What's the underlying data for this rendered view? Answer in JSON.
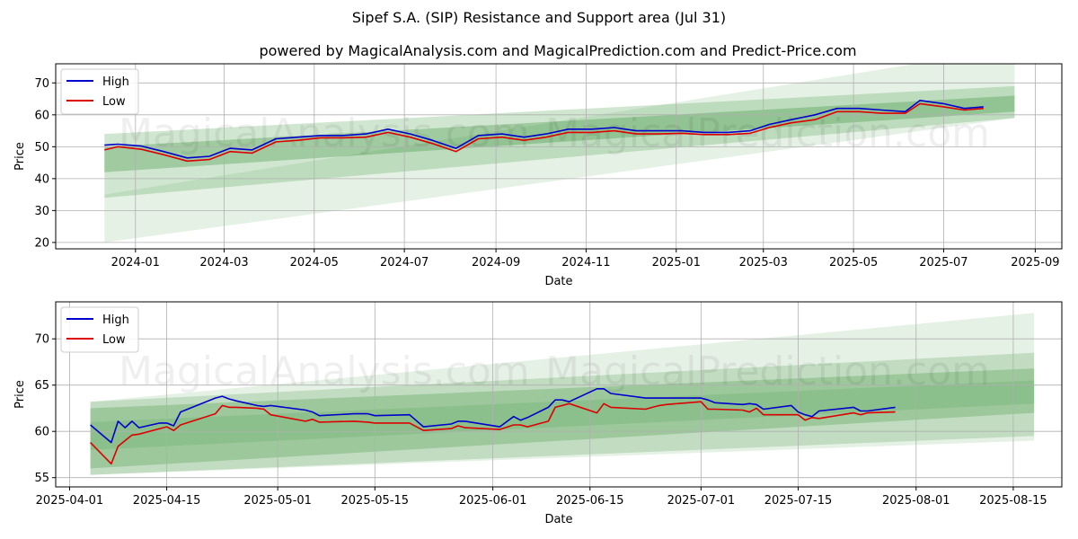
{
  "titles": {
    "main": "Sipef S.A. (SIP) Resistance and Support area (Jul 31)",
    "sub": "powered by MagicalAnalysis.com and MagicalPrediction.com and Predict-Price.com"
  },
  "watermarks": [
    "MagicalAnalysis.com",
    "MagicalPrediction.com"
  ],
  "colors": {
    "high": "#0000cc",
    "low": "#dd0000",
    "band": "#2e8b2e",
    "grid": "#b0b0b0"
  },
  "chart_data": [
    {
      "type": "line",
      "name": "top-panel",
      "xlabel": "Date",
      "ylabel": "Price",
      "xlim": [
        "2023-11-08",
        "2025-09-19"
      ],
      "ylim": [
        18,
        76
      ],
      "xticks": [
        "2024-01",
        "2024-03",
        "2024-05",
        "2024-07",
        "2024-09",
        "2024-11",
        "2025-01",
        "2025-03",
        "2025-05",
        "2025-07",
        "2025-09"
      ],
      "xtick_dates": [
        "2024-01-01",
        "2024-03-01",
        "2024-05-01",
        "2024-07-01",
        "2024-09-01",
        "2024-11-01",
        "2025-01-01",
        "2025-03-01",
        "2025-05-01",
        "2025-07-01",
        "2025-09-01"
      ],
      "yticks": [
        20,
        30,
        40,
        50,
        60,
        70
      ],
      "legend": [
        "High",
        "Low"
      ],
      "bands": [
        {
          "x": [
            "2023-12-11",
            "2025-08-18"
          ],
          "upper": [
            35,
            81
          ],
          "lower": [
            20,
            59
          ],
          "opacity": 0.12
        },
        {
          "x": [
            "2023-12-11",
            "2025-08-18"
          ],
          "upper": [
            54,
            69
          ],
          "lower": [
            34,
            59
          ],
          "opacity": 0.22
        },
        {
          "x": [
            "2023-12-11",
            "2025-08-18"
          ],
          "upper": [
            50,
            66
          ],
          "lower": [
            42,
            61
          ],
          "opacity": 0.3
        }
      ],
      "series": [
        {
          "name": "High",
          "x": [
            "2023-12-11",
            "2023-12-20",
            "2024-01-05",
            "2024-01-20",
            "2024-02-05",
            "2024-02-20",
            "2024-03-05",
            "2024-03-20",
            "2024-04-05",
            "2024-04-20",
            "2024-05-05",
            "2024-05-20",
            "2024-06-05",
            "2024-06-20",
            "2024-07-05",
            "2024-07-20",
            "2024-08-05",
            "2024-08-20",
            "2024-09-05",
            "2024-09-20",
            "2024-10-05",
            "2024-10-20",
            "2024-11-05",
            "2024-11-20",
            "2024-12-05",
            "2024-12-20",
            "2025-01-05",
            "2025-01-20",
            "2025-02-05",
            "2025-02-20",
            "2025-03-05",
            "2025-03-20",
            "2025-04-05",
            "2025-04-20",
            "2025-05-05",
            "2025-05-20",
            "2025-06-05",
            "2025-06-15",
            "2025-07-01",
            "2025-07-15",
            "2025-07-28"
          ],
          "values": [
            50.5,
            50.8,
            50.2,
            48.5,
            46.5,
            47.0,
            49.5,
            49.0,
            52.5,
            53.0,
            53.5,
            53.5,
            54.0,
            55.5,
            54.0,
            52.0,
            49.5,
            53.5,
            54.0,
            53.0,
            54.0,
            55.5,
            55.5,
            56.0,
            55.0,
            55.0,
            55.0,
            54.5,
            54.5,
            55.0,
            57.0,
            58.5,
            60.0,
            62.0,
            62.0,
            61.5,
            61.0,
            64.5,
            63.5,
            62.0,
            62.5
          ]
        },
        {
          "name": "Low",
          "x": [
            "2023-12-11",
            "2023-12-20",
            "2024-01-05",
            "2024-01-20",
            "2024-02-05",
            "2024-02-20",
            "2024-03-05",
            "2024-03-20",
            "2024-04-05",
            "2024-04-20",
            "2024-05-05",
            "2024-05-20",
            "2024-06-05",
            "2024-06-20",
            "2024-07-05",
            "2024-07-20",
            "2024-08-05",
            "2024-08-20",
            "2024-09-05",
            "2024-09-20",
            "2024-10-05",
            "2024-10-20",
            "2024-11-05",
            "2024-11-20",
            "2024-12-05",
            "2024-12-20",
            "2025-01-05",
            "2025-01-20",
            "2025-02-05",
            "2025-02-20",
            "2025-03-05",
            "2025-03-20",
            "2025-04-05",
            "2025-04-20",
            "2025-05-05",
            "2025-05-20",
            "2025-06-05",
            "2025-06-15",
            "2025-07-01",
            "2025-07-15",
            "2025-07-28"
          ],
          "values": [
            49.0,
            50.0,
            49.2,
            47.5,
            45.5,
            46.0,
            48.5,
            48.0,
            51.5,
            52.0,
            52.8,
            52.8,
            53.0,
            54.5,
            53.0,
            51.0,
            48.5,
            52.5,
            53.0,
            52.0,
            53.0,
            54.5,
            54.5,
            55.0,
            54.0,
            54.0,
            54.2,
            53.8,
            53.8,
            54.2,
            56.0,
            57.5,
            58.5,
            61.0,
            61.0,
            60.5,
            60.5,
            63.5,
            62.5,
            61.5,
            62.0
          ]
        }
      ]
    },
    {
      "type": "line",
      "name": "bottom-panel",
      "xlabel": "Date",
      "ylabel": "Price",
      "xlim": [
        "2025-03-30",
        "2025-08-22"
      ],
      "ylim": [
        54,
        74
      ],
      "xticks": [
        "2025-04-01",
        "2025-04-15",
        "2025-05-01",
        "2025-05-15",
        "2025-06-01",
        "2025-06-15",
        "2025-07-01",
        "2025-07-15",
        "2025-08-01",
        "2025-08-15"
      ],
      "xtick_dates": [
        "2025-04-01",
        "2025-04-15",
        "2025-05-01",
        "2025-05-15",
        "2025-06-01",
        "2025-06-15",
        "2025-07-01",
        "2025-07-15",
        "2025-08-01",
        "2025-08-15"
      ],
      "yticks": [
        55,
        60,
        65,
        70
      ],
      "legend": [
        "High",
        "Low"
      ],
      "bands": [
        {
          "x": [
            "2025-04-04",
            "2025-08-18"
          ],
          "upper": [
            63.2,
            72.8
          ],
          "lower": [
            55.3,
            59.0
          ],
          "opacity": 0.12
        },
        {
          "x": [
            "2025-04-04",
            "2025-08-18"
          ],
          "upper": [
            63.2,
            68.5
          ],
          "lower": [
            55.3,
            59.5
          ],
          "opacity": 0.2
        },
        {
          "x": [
            "2025-04-04",
            "2025-08-18"
          ],
          "upper": [
            62.5,
            66.8
          ],
          "lower": [
            56.0,
            62.0
          ],
          "opacity": 0.25
        },
        {
          "x": [
            "2025-04-04",
            "2025-08-18"
          ],
          "upper": [
            61.0,
            65.5
          ],
          "lower": [
            58.0,
            63.0
          ],
          "opacity": 0.15
        }
      ],
      "series": [
        {
          "name": "High",
          "x": [
            "2025-04-04",
            "2025-04-07",
            "2025-04-08",
            "2025-04-09",
            "2025-04-10",
            "2025-04-11",
            "2025-04-14",
            "2025-04-15",
            "2025-04-16",
            "2025-04-17",
            "2025-04-22",
            "2025-04-23",
            "2025-04-24",
            "2025-04-25",
            "2025-04-28",
            "2025-04-29",
            "2025-04-30",
            "2025-05-05",
            "2025-05-06",
            "2025-05-07",
            "2025-05-12",
            "2025-05-14",
            "2025-05-15",
            "2025-05-20",
            "2025-05-22",
            "2025-05-26",
            "2025-05-27",
            "2025-05-28",
            "2025-06-02",
            "2025-06-04",
            "2025-06-05",
            "2025-06-06",
            "2025-06-09",
            "2025-06-10",
            "2025-06-11",
            "2025-06-12",
            "2025-06-16",
            "2025-06-17",
            "2025-06-18",
            "2025-06-23",
            "2025-06-24",
            "2025-06-25",
            "2025-06-26",
            "2025-07-01",
            "2025-07-02",
            "2025-07-03",
            "2025-07-07",
            "2025-07-08",
            "2025-07-09",
            "2025-07-10",
            "2025-07-14",
            "2025-07-15",
            "2025-07-16",
            "2025-07-17",
            "2025-07-18",
            "2025-07-23",
            "2025-07-24",
            "2025-07-25",
            "2025-07-29"
          ],
          "values": [
            60.7,
            58.8,
            61.1,
            60.4,
            61.1,
            60.4,
            60.9,
            60.9,
            60.6,
            62.1,
            63.6,
            63.8,
            63.5,
            63.3,
            62.8,
            62.7,
            62.8,
            62.3,
            62.1,
            61.7,
            61.9,
            61.9,
            61.7,
            61.8,
            60.5,
            60.8,
            61.1,
            61.1,
            60.5,
            61.6,
            61.2,
            61.5,
            62.6,
            63.4,
            63.4,
            63.2,
            64.6,
            64.6,
            64.1,
            63.6,
            63.6,
            63.6,
            63.6,
            63.6,
            63.4,
            63.1,
            62.9,
            63.0,
            62.9,
            62.4,
            62.8,
            62.1,
            61.8,
            61.6,
            62.2,
            62.6,
            62.2,
            62.2,
            62.6
          ]
        },
        {
          "name": "Low",
          "x": [
            "2025-04-04",
            "2025-04-07",
            "2025-04-08",
            "2025-04-09",
            "2025-04-10",
            "2025-04-11",
            "2025-04-14",
            "2025-04-15",
            "2025-04-16",
            "2025-04-17",
            "2025-04-22",
            "2025-04-23",
            "2025-04-24",
            "2025-04-25",
            "2025-04-28",
            "2025-04-29",
            "2025-04-30",
            "2025-05-05",
            "2025-05-06",
            "2025-05-07",
            "2025-05-12",
            "2025-05-14",
            "2025-05-15",
            "2025-05-20",
            "2025-05-22",
            "2025-05-26",
            "2025-05-27",
            "2025-05-28",
            "2025-06-02",
            "2025-06-04",
            "2025-06-05",
            "2025-06-06",
            "2025-06-09",
            "2025-06-10",
            "2025-06-11",
            "2025-06-12",
            "2025-06-16",
            "2025-06-17",
            "2025-06-18",
            "2025-06-23",
            "2025-06-24",
            "2025-06-25",
            "2025-06-26",
            "2025-07-01",
            "2025-07-02",
            "2025-07-03",
            "2025-07-07",
            "2025-07-08",
            "2025-07-09",
            "2025-07-10",
            "2025-07-14",
            "2025-07-15",
            "2025-07-16",
            "2025-07-17",
            "2025-07-18",
            "2025-07-23",
            "2025-07-24",
            "2025-07-25",
            "2025-07-29"
          ],
          "values": [
            58.8,
            56.5,
            58.4,
            59.0,
            59.6,
            59.7,
            60.3,
            60.5,
            60.1,
            60.7,
            61.9,
            62.8,
            62.6,
            62.6,
            62.5,
            62.4,
            61.8,
            61.1,
            61.3,
            61.0,
            61.1,
            61.0,
            60.9,
            60.9,
            60.1,
            60.3,
            60.6,
            60.4,
            60.2,
            60.7,
            60.7,
            60.5,
            61.1,
            62.6,
            62.8,
            63.0,
            62.0,
            63.0,
            62.6,
            62.4,
            62.6,
            62.8,
            62.9,
            63.2,
            62.4,
            62.4,
            62.3,
            62.1,
            62.5,
            61.8,
            61.8,
            61.8,
            61.2,
            61.5,
            61.4,
            62.0,
            61.8,
            62.0,
            62.1
          ]
        }
      ]
    }
  ]
}
